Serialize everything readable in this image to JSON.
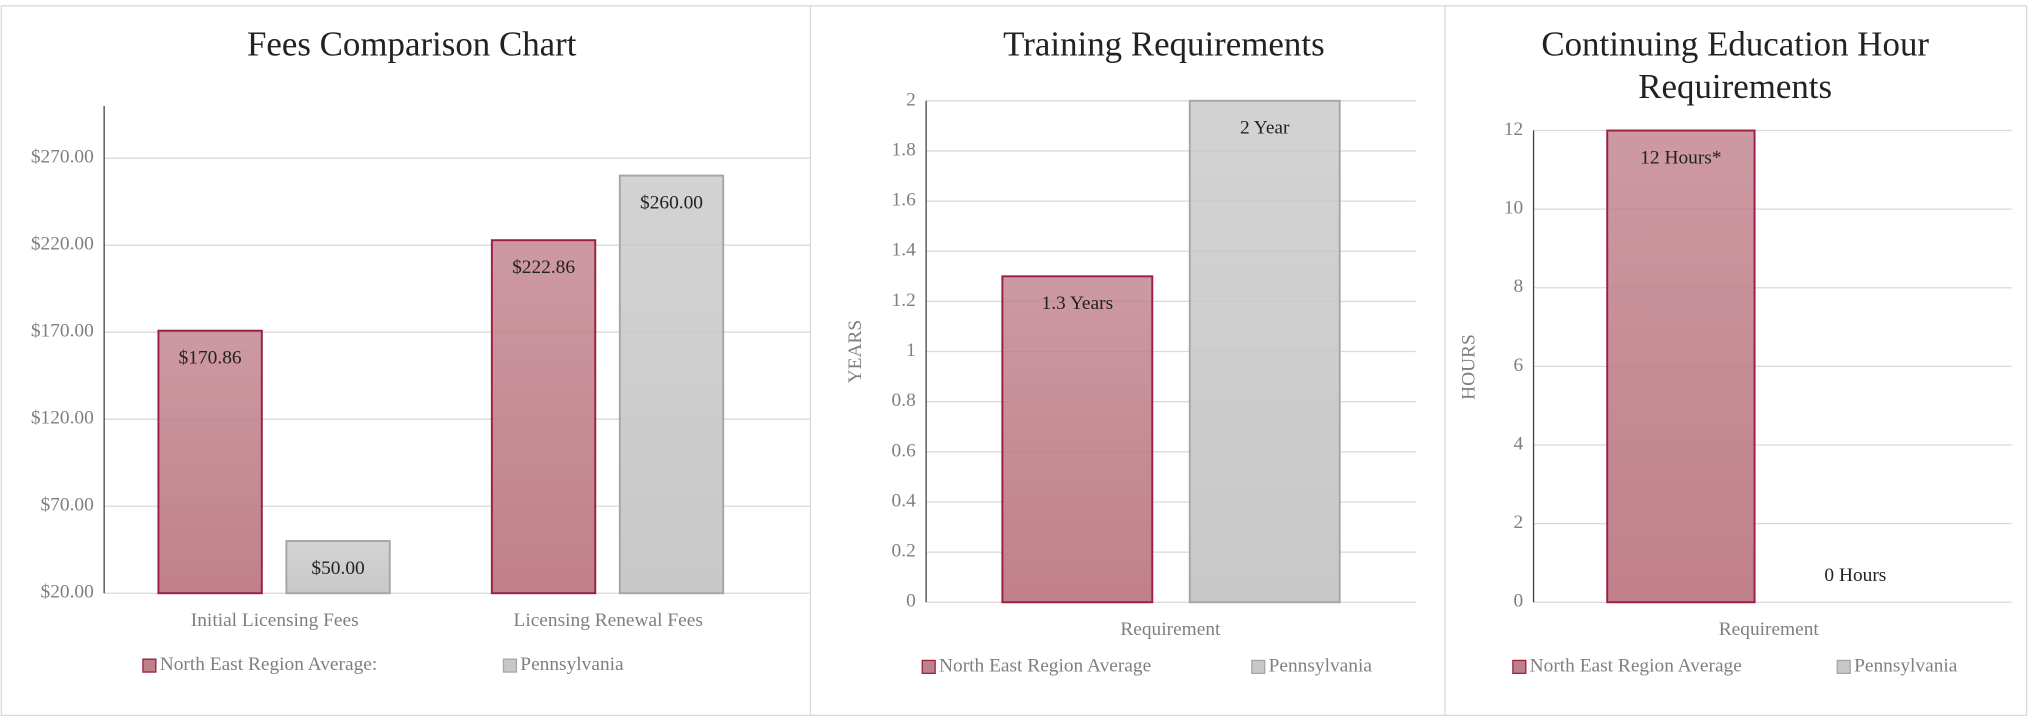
{
  "chart_data": [
    {
      "type": "bar",
      "title": "Fees Comparison Chart",
      "categories": [
        "Initial Licensing Fees",
        "Licensing Renewal Fees"
      ],
      "series": [
        {
          "name": "North East Region Average:",
          "color": "#c0808b",
          "values": [
            170.86,
            222.86
          ],
          "value_labels": [
            "$170.86",
            "$222.86"
          ]
        },
        {
          "name": "Pennsylvania",
          "color": "#c8c8c8",
          "values": [
            50,
            260
          ],
          "value_labels": [
            "$50.00",
            "$260.00"
          ]
        }
      ],
      "ylim": [
        20,
        300
      ],
      "yticks": [
        {
          "value": 20,
          "label": "$20.00"
        },
        {
          "value": 70,
          "label": "$70.00"
        },
        {
          "value": 120,
          "label": "$120.00"
        },
        {
          "value": 170,
          "label": "$170.00"
        },
        {
          "value": 220,
          "label": "$220.00"
        },
        {
          "value": 270,
          "label": "$270.00"
        }
      ],
      "grid": true,
      "legend": "bottom"
    },
    {
      "type": "bar",
      "title": "Training Requirements",
      "ylabel": "YEARS",
      "categories": [
        "Requirement"
      ],
      "series": [
        {
          "name": "North East Region Average",
          "color": "#c0808b",
          "values": [
            1.3
          ],
          "value_labels": [
            "1.3 Years"
          ]
        },
        {
          "name": "Pennsylvania",
          "color": "#c8c8c8",
          "values": [
            2
          ],
          "value_labels": [
            "2 Year"
          ]
        }
      ],
      "ylim": [
        0,
        2
      ],
      "yticks": [
        0,
        0.2,
        0.4,
        0.6,
        0.8,
        1,
        1.2,
        1.4,
        1.6,
        1.8,
        2
      ],
      "grid": true,
      "legend": "bottom"
    },
    {
      "type": "bar",
      "title": "Continuing Education Hour Requirements",
      "ylabel": "HOURS",
      "categories": [
        "Requirement"
      ],
      "series": [
        {
          "name": "North East Region Average",
          "color": "#c0808b",
          "values": [
            12
          ],
          "value_labels": [
            "12 Hours*"
          ]
        },
        {
          "name": "Pennsylvania",
          "color": "#c8c8c8",
          "values": [
            0
          ],
          "value_labels": [
            "0 Hours"
          ]
        }
      ],
      "ylim": [
        0,
        12
      ],
      "yticks": [
        0,
        2,
        4,
        6,
        8,
        10,
        12
      ],
      "grid": true,
      "legend": "bottom"
    }
  ]
}
